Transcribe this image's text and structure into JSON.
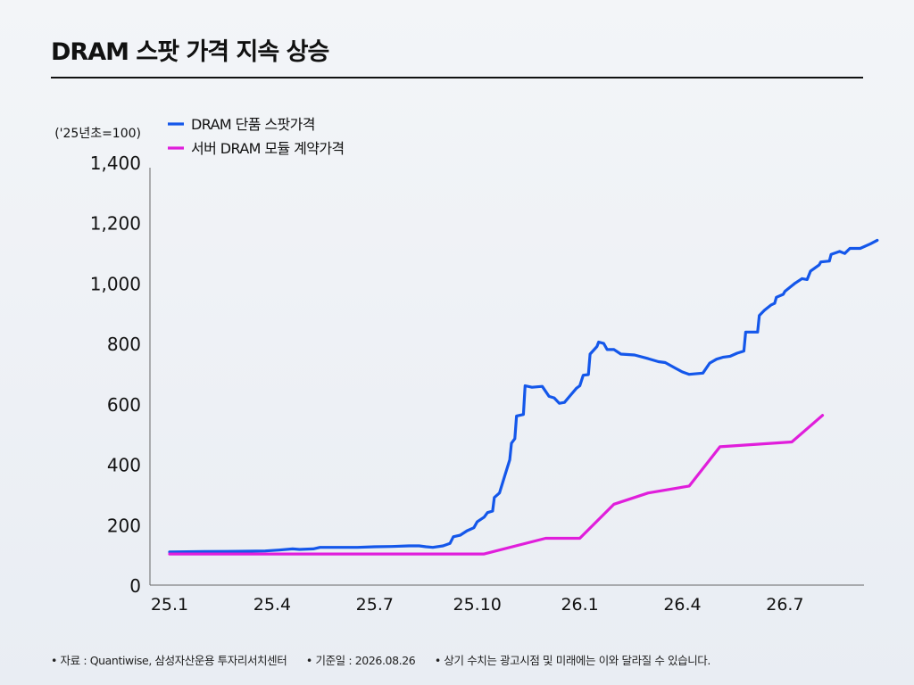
{
  "title": "DRAM 스팟 가격 지속 상승",
  "footer": {
    "source": "• 자료 : Quantiwise, 삼성자산운용 투자리서치센터",
    "base_date": "• 기준일 : 2026.08.26",
    "disclaimer": "• 상기 수치는 광고시점 및 미래에는 이와 달라질 수 있습니다."
  },
  "chart_data": {
    "type": "line",
    "title": "DRAM 스팟 가격 지속 상승",
    "ylabel": "('25년초=100)",
    "xlabel": "",
    "ylim": [
      0,
      1400
    ],
    "yticks": [
      0,
      200,
      400,
      600,
      800,
      1000,
      1200,
      1400
    ],
    "ytick_labels": [
      "0",
      "200",
      "400",
      "600",
      "800",
      "1,000",
      "1,200",
      "1,400"
    ],
    "xlim": [
      0,
      20
    ],
    "xticks": [
      0,
      3,
      6,
      9,
      12,
      15,
      18
    ],
    "xtick_labels": [
      "25.1",
      "25.4",
      "25.7",
      "25.10",
      "26.1",
      "26.4",
      "26.7"
    ],
    "grid": false,
    "legend": "top-left",
    "series": [
      {
        "name": "DRAM 단품 스팟가격",
        "color": "#1457ea",
        "points": [
          [
            0,
            110
          ],
          [
            1,
            111
          ],
          [
            2,
            112
          ],
          [
            2.8,
            113
          ],
          [
            3.2,
            116
          ],
          [
            3.6,
            120
          ],
          [
            3.8,
            118
          ],
          [
            4.2,
            120
          ],
          [
            4.4,
            125
          ],
          [
            5,
            125
          ],
          [
            5.5,
            125
          ],
          [
            6,
            127
          ],
          [
            6.5,
            128
          ],
          [
            7,
            130
          ],
          [
            7.3,
            130
          ],
          [
            7.5,
            127
          ],
          [
            7.7,
            125
          ],
          [
            8,
            130
          ],
          [
            8.2,
            138
          ],
          [
            8.3,
            160
          ],
          [
            8.5,
            165
          ],
          [
            8.7,
            180
          ],
          [
            8.9,
            190
          ],
          [
            9,
            210
          ],
          [
            9.2,
            225
          ],
          [
            9.3,
            240
          ],
          [
            9.45,
            245
          ],
          [
            9.5,
            290
          ],
          [
            9.65,
            305
          ],
          [
            9.8,
            360
          ],
          [
            9.95,
            415
          ],
          [
            10,
            470
          ],
          [
            10.1,
            485
          ],
          [
            10.15,
            560
          ],
          [
            10.35,
            565
          ],
          [
            10.4,
            660
          ],
          [
            10.6,
            655
          ],
          [
            10.9,
            658
          ],
          [
            11.1,
            625
          ],
          [
            11.25,
            620
          ],
          [
            11.4,
            602
          ],
          [
            11.55,
            605
          ],
          [
            11.7,
            625
          ],
          [
            11.9,
            652
          ],
          [
            12.0,
            660
          ],
          [
            12.1,
            695
          ],
          [
            12.25,
            697
          ],
          [
            12.3,
            765
          ],
          [
            12.5,
            790
          ],
          [
            12.55,
            805
          ],
          [
            12.7,
            800
          ],
          [
            12.8,
            780
          ],
          [
            13.0,
            780
          ],
          [
            13.2,
            765
          ],
          [
            13.6,
            762
          ],
          [
            14.0,
            750
          ],
          [
            14.3,
            740
          ],
          [
            14.5,
            737
          ],
          [
            14.8,
            718
          ],
          [
            15.0,
            706
          ],
          [
            15.2,
            698
          ],
          [
            15.6,
            702
          ],
          [
            15.8,
            735
          ],
          [
            16.0,
            748
          ],
          [
            16.2,
            755
          ],
          [
            16.4,
            758
          ],
          [
            16.6,
            768
          ],
          [
            16.8,
            775
          ],
          [
            16.85,
            838
          ],
          [
            17.2,
            838
          ],
          [
            17.25,
            893
          ],
          [
            17.4,
            910
          ],
          [
            17.6,
            928
          ],
          [
            17.7,
            933
          ],
          [
            17.75,
            953
          ],
          [
            17.95,
            963
          ],
          [
            18.0,
            973
          ],
          [
            18.3,
            1000
          ],
          [
            18.5,
            1015
          ],
          [
            18.65,
            1012
          ],
          [
            18.75,
            1040
          ],
          [
            19.0,
            1060
          ],
          [
            19.05,
            1070
          ],
          [
            19.3,
            1073
          ],
          [
            19.35,
            1095
          ],
          [
            19.6,
            1105
          ],
          [
            19.75,
            1098
          ],
          [
            19.9,
            1115
          ],
          [
            20.2,
            1115
          ],
          [
            20.5,
            1130
          ],
          [
            20.7,
            1142
          ]
        ]
      },
      {
        "name": "서버 DRAM 모듈 계약가격",
        "color": "#e01edb",
        "points": [
          [
            0,
            103
          ],
          [
            9,
            103
          ],
          [
            9.2,
            103
          ],
          [
            11,
            155
          ],
          [
            12,
            155
          ],
          [
            13,
            268
          ],
          [
            14,
            305
          ],
          [
            15.2,
            328
          ],
          [
            16.1,
            458
          ],
          [
            18.2,
            474
          ],
          [
            19.1,
            562
          ]
        ]
      }
    ]
  }
}
